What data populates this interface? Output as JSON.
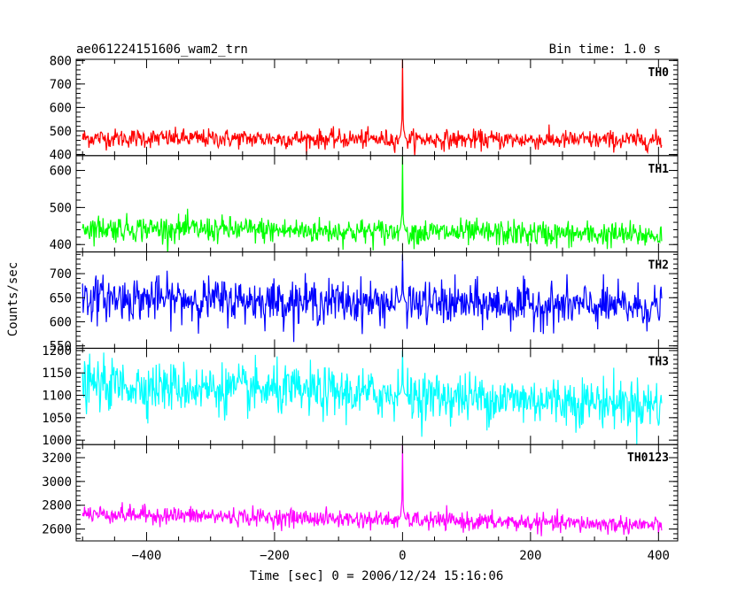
{
  "header": {
    "title": "ae061224151606_wam2_trn",
    "bin_time": "Bin time: 1.0 s"
  },
  "chart_data": {
    "type": "line",
    "title": "ae061224151606_wam2_trn",
    "subtitle": "Bin time: 1.0 s",
    "xlabel": "Time [sec] 0 = 2006/12/24 15:16:06",
    "ylabel": "Counts/sec",
    "xlim": [
      -510,
      430
    ],
    "x_ticks": [
      -400,
      -200,
      0,
      200,
      400
    ],
    "x_range": [
      -500,
      405
    ],
    "bin_time": 1.0,
    "grid": false,
    "panels": [
      {
        "name": "TH0",
        "color": "#ff0000",
        "ylim": [
          395,
          805
        ],
        "y_ticks": [
          400,
          500,
          600,
          700,
          800
        ],
        "baseline_start": 470,
        "baseline_end": 460,
        "noise": 40,
        "peak_time": 0,
        "peak_value": 805
      },
      {
        "name": "TH1",
        "color": "#00ff00",
        "ylim": [
          380,
          640
        ],
        "y_ticks": [
          400,
          500,
          600
        ],
        "baseline_start": 445,
        "baseline_end": 425,
        "noise": 35,
        "peak_time": 0,
        "peak_value": 640
      },
      {
        "name": "TH2",
        "color": "#0000ff",
        "ylim": [
          545,
          745
        ],
        "y_ticks": [
          550,
          600,
          650,
          700
        ],
        "baseline_start": 650,
        "baseline_end": 630,
        "noise": 45,
        "peak_time": 0,
        "peak_value": 740
      },
      {
        "name": "TH3",
        "color": "#00ffff",
        "ylim": [
          990,
          1205
        ],
        "y_ticks": [
          1000,
          1050,
          1100,
          1150,
          1200
        ],
        "baseline_start": 1125,
        "baseline_end": 1080,
        "noise": 55,
        "peak_time": 0,
        "peak_value": 1200
      },
      {
        "name": "TH0123",
        "color": "#ff00ff",
        "ylim": [
          2500,
          3310
        ],
        "y_ticks": [
          2600,
          2800,
          3000,
          3200
        ],
        "baseline_start": 2730,
        "baseline_end": 2630,
        "noise": 75,
        "peak_time": 0,
        "peak_value": 3310
      }
    ]
  }
}
